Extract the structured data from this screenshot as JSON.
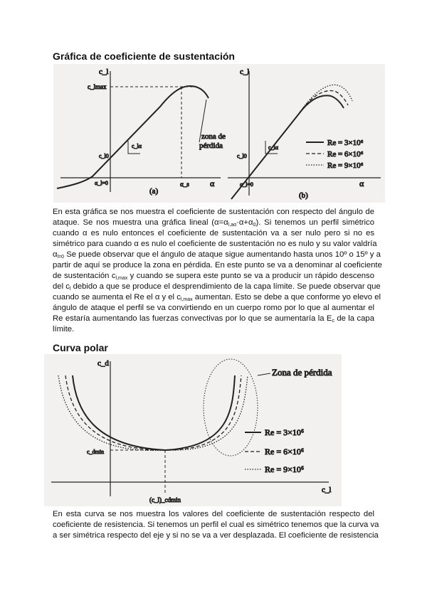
{
  "section1": {
    "title": "Gráfica de coeficiente de sustentación"
  },
  "figure1": {
    "panel_a": {
      "y_axis": "c_l",
      "x_axis": "α",
      "clmax": "c_lmax",
      "zone": [
        "zona de",
        "pérdida"
      ],
      "slope": "c_lα",
      "intercept": "c_l0",
      "alpha_zero": "α_l=0",
      "alpha_s": "α_s",
      "caption": "(a)"
    },
    "panel_b": {
      "y_axis": "c_l",
      "x_axis": "α",
      "slope": "c_lα",
      "intercept": "c_l0",
      "alpha_zero": "α_l=0",
      "caption": "(b)",
      "legend": [
        "Re = 3×10⁶",
        "Re = 6×10⁶",
        "Re = 9×10⁶"
      ]
    }
  },
  "paragraph1": [
    [
      [
        "En esta gráfica se nos muestra el coeficiente de sustentación con respecto del ángulo de"
      ]
    ],
    [
      [
        "ataque. Se nos muestra una gráfica lineal (α=α"
      ],
      [
        "l,aα",
        "sub"
      ],
      [
        "·α+α"
      ],
      [
        "0",
        "sub"
      ],
      [
        "). Si tenemos un perfil simétrico"
      ]
    ],
    [
      [
        "cuando α es nulo entonces el coeficiente de sustentación va a ser nulo pero si no es"
      ]
    ],
    [
      [
        "simétrico para cuando α es nulo el coeficiente de sustentación no es nulo y su valor valdría"
      ]
    ],
    [
      [
        "α"
      ],
      [
        "l=0",
        "sub"
      ],
      [
        " Se puede observar que el ángulo de ataque sigue aumentando hasta unos 10º o 15º y a"
      ]
    ],
    [
      [
        "partir de aquí se produce la zona en pérdida. En este punto se va a denominar al coeficiente"
      ]
    ],
    [
      [
        "de sustentación c"
      ],
      [
        "l,max",
        "sub"
      ],
      [
        "  y cuando se supera este punto se va a producir un rápido descenso"
      ]
    ],
    [
      [
        "del c"
      ],
      [
        "l",
        "sub"
      ],
      [
        " debido a que se produce el desprendimiento de la capa límite. Se puede observar que"
      ]
    ],
    [
      [
        "cuando se aumenta el Re el α y el c"
      ],
      [
        "l,max",
        "sub"
      ],
      [
        " aumentan. Esto se debe a que conforme yo elevo el"
      ]
    ],
    [
      [
        "ángulo de ataque el perfil se va convirtiendo en un cuerpo romo por lo que al aumentar el"
      ]
    ],
    [
      [
        "Re estaría aumentando las fuerzas convectivas por lo que se aumentaría la E"
      ],
      [
        "c",
        "sub"
      ],
      [
        " de la capa"
      ]
    ],
    [
      [
        "límite."
      ]
    ]
  ],
  "section2": {
    "title": "Curva polar"
  },
  "figure2": {
    "y_axis": "c_d",
    "x_axis": "c_l",
    "zone": "Zona de pérdida",
    "cdmin": "c_dmin",
    "cl_cdmin": "(c_l)_cdmin",
    "legend": [
      "Re = 3×10⁶",
      "Re = 6×10⁶",
      "Re = 9×10⁶"
    ]
  },
  "paragraph2": [
    [
      [
        "En esta curva se nos muestra los valores del coeficiente de sustentación respecto del"
      ]
    ],
    [
      [
        "coeficiente de resistencia. Si tenemos un perfil el cual es simétrico tenemos que la curva va"
      ]
    ],
    [
      [
        "a ser simétrica respecto del eje y si no se va a ver desplazada. El coeficiente de resistencia"
      ]
    ]
  ]
}
